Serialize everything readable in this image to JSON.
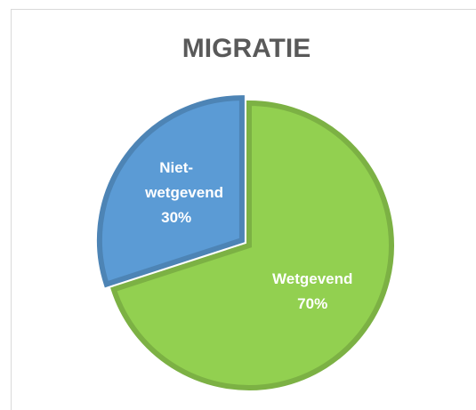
{
  "chart_data": {
    "type": "pie",
    "title": "MIGRATIE",
    "categories": [
      "Wetgevend",
      "Niet-wetgevend"
    ],
    "values": [
      70,
      30
    ],
    "value_labels": [
      "70%",
      "30%"
    ],
    "colors": [
      "#92d050",
      "#5b9bd5"
    ]
  }
}
